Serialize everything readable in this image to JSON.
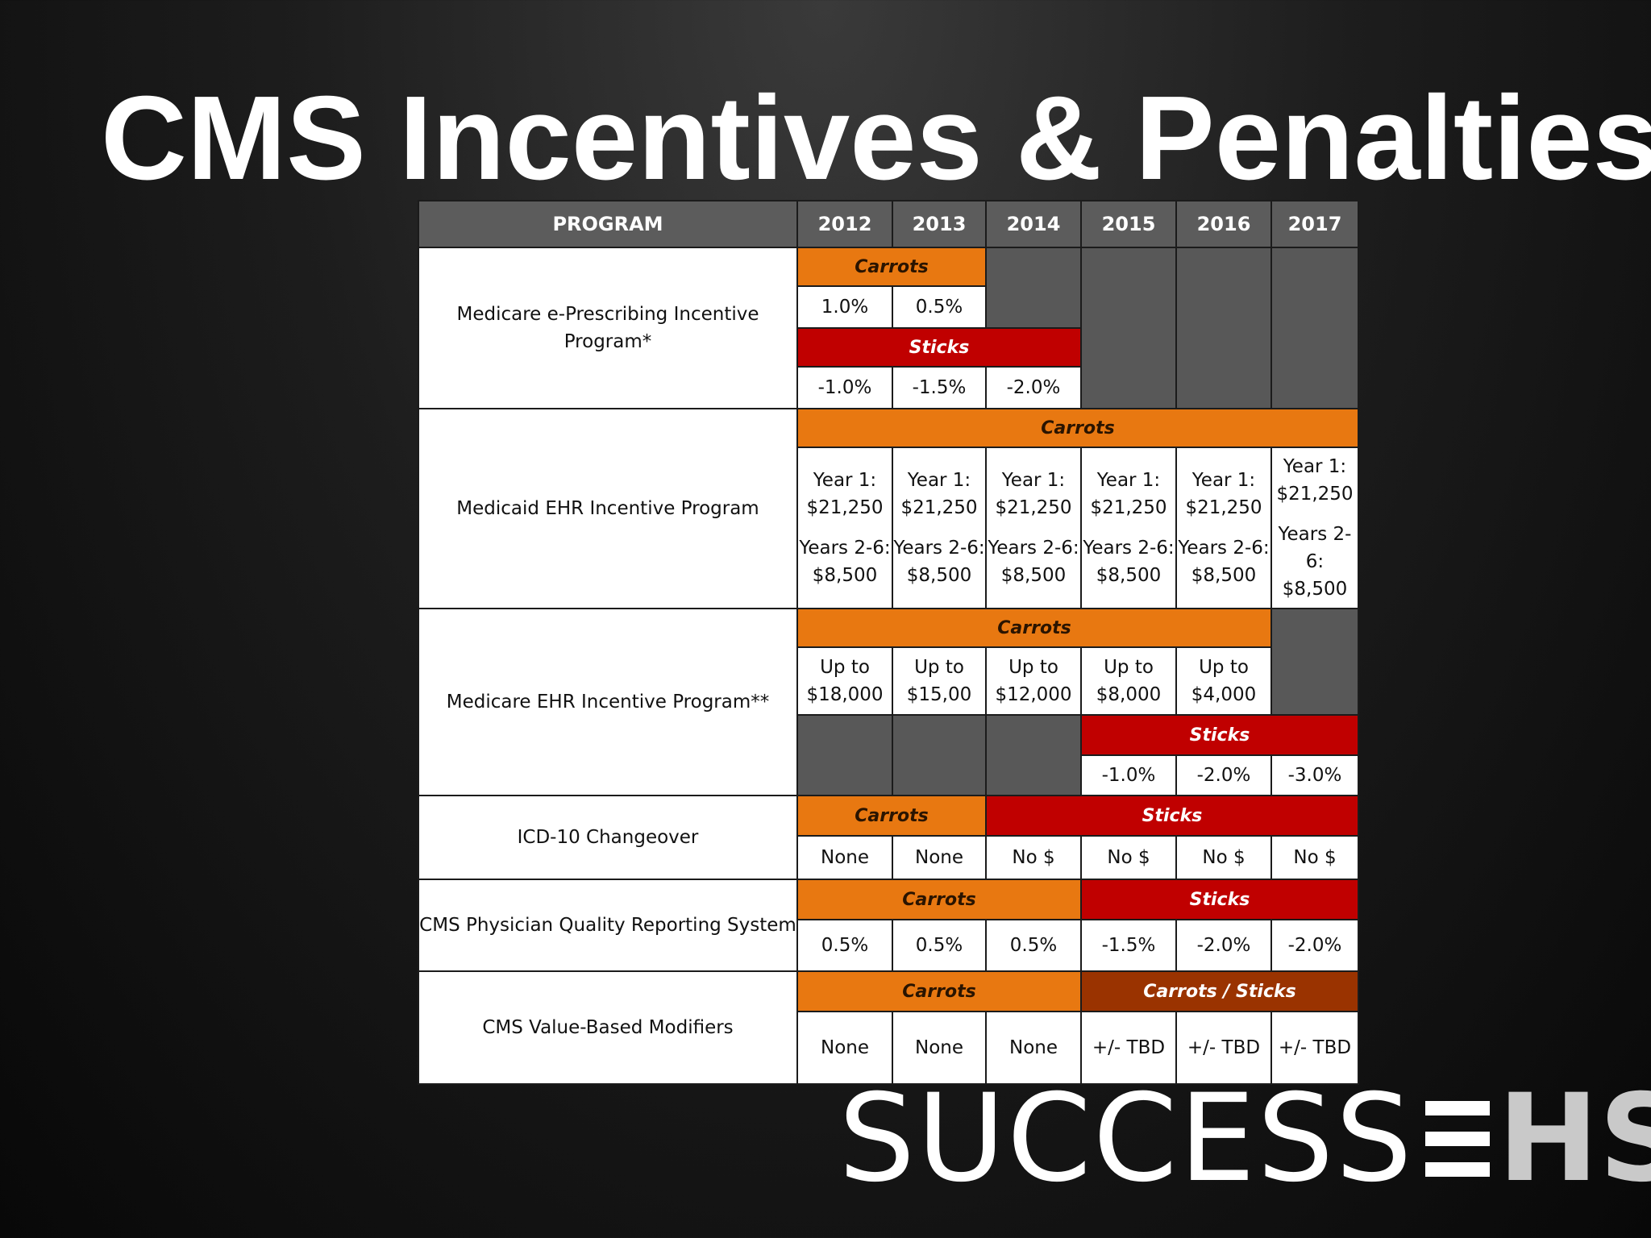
{
  "title": "CMS Incentives & Penalties",
  "header": {
    "program": "PROGRAM",
    "years": [
      "2012",
      "2013",
      "2014",
      "2015",
      "2016",
      "2017"
    ]
  },
  "labels": {
    "carrots": "Carrots",
    "sticks": "Sticks",
    "carrots_sticks": "Carrots / Sticks"
  },
  "programs": {
    "eprescribing": {
      "name": "Medicare e-Prescribing Incentive Program*",
      "carrots": [
        "1.0%",
        "0.5%"
      ],
      "sticks": [
        "-1.0%",
        "-1.5%",
        "-2.0%"
      ]
    },
    "medicaid_ehr": {
      "name": "Medicaid EHR Incentive Program",
      "year1": "Year 1: $21,250",
      "years2to6": "Years 2-6: $8,500"
    },
    "medicare_ehr": {
      "name": "Medicare EHR Incentive Program**",
      "carrots": [
        "Up to $18,000",
        "Up to $15,00",
        "Up to $12,000",
        "Up to $8,000",
        "Up to $4,000"
      ],
      "sticks": [
        "-1.0%",
        "-2.0%",
        "-3.0%"
      ]
    },
    "icd10": {
      "name": "ICD-10 Changeover",
      "values": [
        "None",
        "None",
        "No $",
        "No $",
        "No $",
        "No $"
      ]
    },
    "pqrs": {
      "name": "CMS Physician Quality Reporting System",
      "values": [
        "0.5%",
        "0.5%",
        "0.5%",
        "-1.5%",
        "-2.0%",
        "-2.0%"
      ]
    },
    "vbm": {
      "name": "CMS Value-Based Modifiers",
      "values": [
        "None",
        "None",
        "None",
        "+/- TBD",
        "+/- TBD",
        "+/- TBD"
      ]
    }
  },
  "logo": {
    "success": "SUCCESS",
    "ehs": "HS"
  }
}
